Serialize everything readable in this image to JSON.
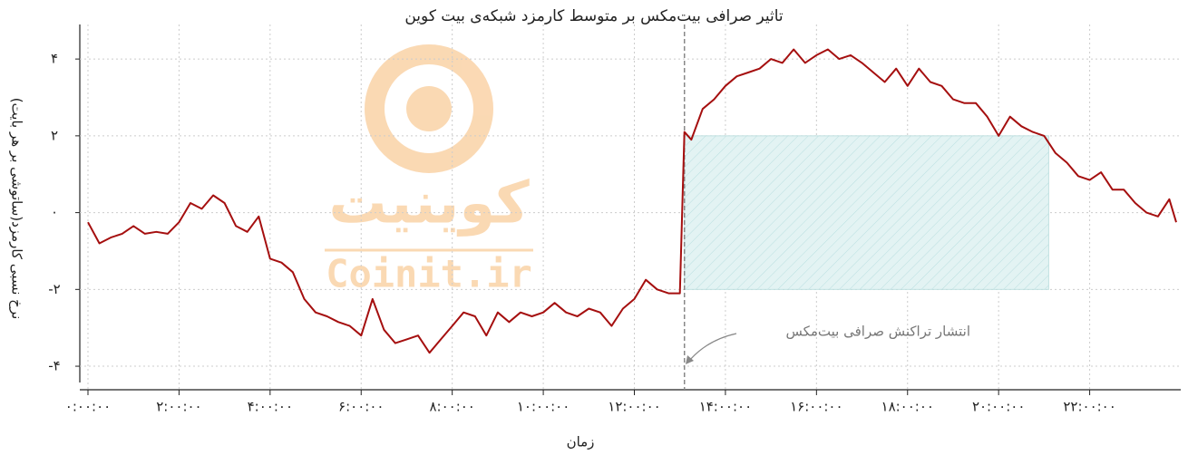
{
  "chart_data": {
    "type": "line",
    "title": "تاثیر صرافی بیت‌مکس بر متوسط کارمزد شبکه‌ی بیت کوین",
    "xlabel": "زمان",
    "ylabel": "نرخ نسبی کارمزد(ساتوشی بر هر بایت)",
    "annotation": "انتشار تراکنش صرافی بیت‌مکس",
    "watermark": [
      "کوینیت",
      "Coinit.ir"
    ],
    "xlim": [
      0,
      24
    ],
    "ylim": [
      -4.4,
      4.9
    ],
    "xticks": [
      {
        "value": 0,
        "label": "۰:۰۰:۰۰"
      },
      {
        "value": 2,
        "label": "۲:۰۰:۰۰"
      },
      {
        "value": 4,
        "label": "۴:۰۰:۰۰"
      },
      {
        "value": 6,
        "label": "۶:۰۰:۰۰"
      },
      {
        "value": 8,
        "label": "۸:۰۰:۰۰"
      },
      {
        "value": 10,
        "label": "۱۰:۰۰:۰۰"
      },
      {
        "value": 12,
        "label": "۱۲:۰۰:۰۰"
      },
      {
        "value": 14,
        "label": "۱۴:۰۰:۰۰"
      },
      {
        "value": 16,
        "label": "۱۶:۰۰:۰۰"
      },
      {
        "value": 18,
        "label": "۱۸:۰۰:۰۰"
      },
      {
        "value": 20,
        "label": "۲۰:۰۰:۰۰"
      },
      {
        "value": 22,
        "label": "۲۲:۰۰:۰۰"
      }
    ],
    "yticks": [
      {
        "value": -4,
        "label": "-۴"
      },
      {
        "value": -2,
        "label": "-۲"
      },
      {
        "value": 0,
        "label": "۰"
      },
      {
        "value": 2,
        "label": "۲"
      },
      {
        "value": 4,
        "label": "۴"
      }
    ],
    "grid": true,
    "highlight": {
      "x": [
        13.1,
        21.1
      ],
      "y": [
        -2,
        2
      ],
      "color": "#e3f3f3"
    },
    "series": [
      {
        "name": "نرخ نسبی کارمزد",
        "color": "#a50f0f",
        "x": [
          0,
          0.25,
          0.5,
          0.75,
          1,
          1.25,
          1.5,
          1.75,
          2,
          2.25,
          2.5,
          2.75,
          3,
          3.25,
          3.5,
          3.75,
          4,
          4.25,
          4.5,
          4.75,
          5,
          5.25,
          5.5,
          5.75,
          6,
          6.25,
          6.5,
          6.75,
          7,
          7.25,
          7.5,
          7.75,
          8,
          8.25,
          8.5,
          8.75,
          9,
          9.25,
          9.5,
          9.75,
          10,
          10.25,
          10.5,
          10.75,
          11,
          11.25,
          11.5,
          11.75,
          12,
          12.25,
          12.5,
          12.75,
          13,
          13.1,
          13.25,
          13.5,
          13.75,
          14,
          14.25,
          14.5,
          14.75,
          15,
          15.25,
          15.5,
          15.75,
          16,
          16.25,
          16.5,
          16.75,
          17,
          17.25,
          17.5,
          17.75,
          18,
          18.25,
          18.5,
          18.75,
          19,
          19.25,
          19.5,
          19.75,
          20,
          20.25,
          20.5,
          20.75,
          21,
          21.25,
          21.5,
          21.75,
          22,
          22.25,
          22.5,
          22.75,
          23,
          23.25,
          23.5,
          23.75,
          23.9
        ],
        "values": [
          -0.25,
          -0.8,
          -0.65,
          -0.55,
          -0.35,
          -0.55,
          -0.5,
          -0.55,
          -0.25,
          0.25,
          0.1,
          0.45,
          0.25,
          -0.35,
          -0.5,
          -0.1,
          -1.2,
          -1.3,
          -1.55,
          -2.25,
          -2.6,
          -2.7,
          -2.85,
          -2.95,
          -3.2,
          -2.25,
          -3.05,
          -3.4,
          -3.3,
          -3.2,
          -3.65,
          -3.3,
          -2.95,
          -2.6,
          -2.7,
          -3.2,
          -2.6,
          -2.85,
          -2.6,
          -2.7,
          -2.6,
          -2.35,
          -2.6,
          -2.7,
          -2.5,
          -2.6,
          -2.95,
          -2.5,
          -2.25,
          -1.75,
          -2,
          -2.1,
          -2.1,
          2.1,
          1.9,
          2.7,
          2.95,
          3.3,
          3.55,
          3.65,
          3.75,
          4,
          3.9,
          4.25,
          3.9,
          4.1,
          4.25,
          4,
          4.1,
          3.9,
          3.65,
          3.4,
          3.75,
          3.3,
          3.75,
          3.4,
          3.3,
          2.95,
          2.85,
          2.85,
          2.5,
          2,
          2.5,
          2.25,
          2.1,
          2,
          1.55,
          1.3,
          0.95,
          0.85,
          1.05,
          0.6,
          0.6,
          0.25,
          0,
          -0.1,
          0.35,
          -0.25
        ]
      }
    ]
  }
}
